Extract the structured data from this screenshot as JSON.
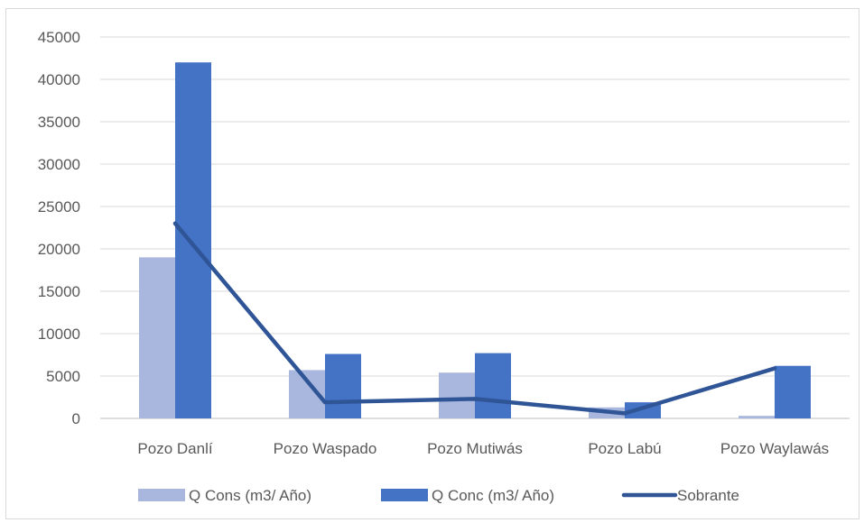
{
  "chart_data": {
    "type": "bar",
    "title": "",
    "xlabel": "",
    "ylabel": "",
    "categories": [
      "Pozo Danlí",
      "Pozo Waspado",
      "Pozo Mutiwás",
      "Pozo Labú",
      "Pozo Waylawás"
    ],
    "ylim": [
      0,
      45000
    ],
    "yticks": [
      0,
      5000,
      10000,
      15000,
      20000,
      25000,
      30000,
      35000,
      40000,
      45000
    ],
    "grid": true,
    "legend_position": "bottom",
    "series": [
      {
        "name": "Q Cons (m3/ Año)",
        "kind": "bar",
        "color": "#a9b7de",
        "values": [
          19000,
          5700,
          5400,
          1300,
          300
        ]
      },
      {
        "name": "Q Conc (m3/ Año)",
        "kind": "bar",
        "color": "#4472c4",
        "values": [
          42000,
          7600,
          7700,
          1900,
          6200
        ]
      },
      {
        "name": "Sobrante",
        "kind": "line",
        "color": "#2f5597",
        "values": [
          23000,
          1900,
          2300,
          600,
          5900
        ]
      }
    ]
  }
}
